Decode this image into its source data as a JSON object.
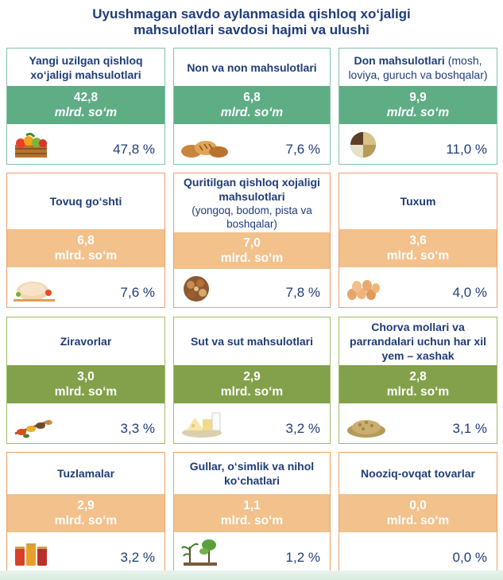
{
  "title": {
    "line1": "Uyushmagan savdo aylanmasida qishloq xo‘jaligi",
    "line2": "mahsulotlari savdosi hajmi va ulushi"
  },
  "cards": [
    {
      "label": "Yangi uzilgan qishloq xo‘jaligi mahsulotlari",
      "value": "42,8",
      "unit": "mlrd. so‘m",
      "share": "47,8 %",
      "icon": "fruit-crate-icon"
    },
    {
      "label": "Non va non mahsulotlari",
      "value": "6,8",
      "unit": "mlrd. so‘m",
      "share": "7,6 %",
      "icon": "bread-icon"
    },
    {
      "label": "Don mahsulotlari",
      "label_sub": "(mosh, loviya, guruch va boshqalar)",
      "value": "9,9",
      "unit": "mlrd. so‘m",
      "share": "11,0 %",
      "icon": "grain-bowl-icon"
    },
    {
      "label": "Tovuq go‘shti",
      "value": "6,8",
      "unit": "mlrd. so‘m",
      "share": "7,6 %",
      "icon": "chicken-icon"
    },
    {
      "label": "Quritilgan qishloq xojaligi mahsulotlari",
      "label_sub": "(yongoq, bodom, pista va boshqalar)",
      "value": "7,0",
      "unit": "mlrd. so‘m",
      "share": "7,8 %",
      "icon": "nuts-icon"
    },
    {
      "label": "Tuxum",
      "value": "3,6",
      "unit": "mlrd. so‘m",
      "share": "4,0 %",
      "icon": "eggs-icon"
    },
    {
      "label": "Ziravorlar",
      "value": "3,0",
      "unit": "mlrd. so‘m",
      "share": "3,3 %",
      "icon": "spices-icon"
    },
    {
      "label": "Sut va sut mahsulotlari",
      "value": "2,9",
      "unit": "mlrd. so‘m",
      "share": "3,2 %",
      "icon": "dairy-icon"
    },
    {
      "label": "Chorva mollari va parrandalari uchun har xil yem – xashak",
      "value": "2,8",
      "unit": "mlrd. so‘m",
      "share": "3,1 %",
      "icon": "feed-grain-icon"
    },
    {
      "label": "Tuzlamalar",
      "value": "2,9",
      "unit": "mlrd. so‘m",
      "share": "3,2 %",
      "icon": "pickles-icon"
    },
    {
      "label": "Gullar, o‘simlik va nihol ko‘chatlari",
      "value": "1,1",
      "unit": "mlrd. so‘m",
      "share": "1,2 %",
      "icon": "seedlings-icon"
    },
    {
      "label": "Nooziq-ovqat tovarlar",
      "value": "0,0",
      "unit": "mlrd. so‘m",
      "share": "0,0 %",
      "icon": ""
    }
  ],
  "colors": {
    "title": "#1f3c78",
    "green_band": "#5fad85",
    "orange_band": "#f2c18c",
    "olive_band": "#82a14a"
  }
}
